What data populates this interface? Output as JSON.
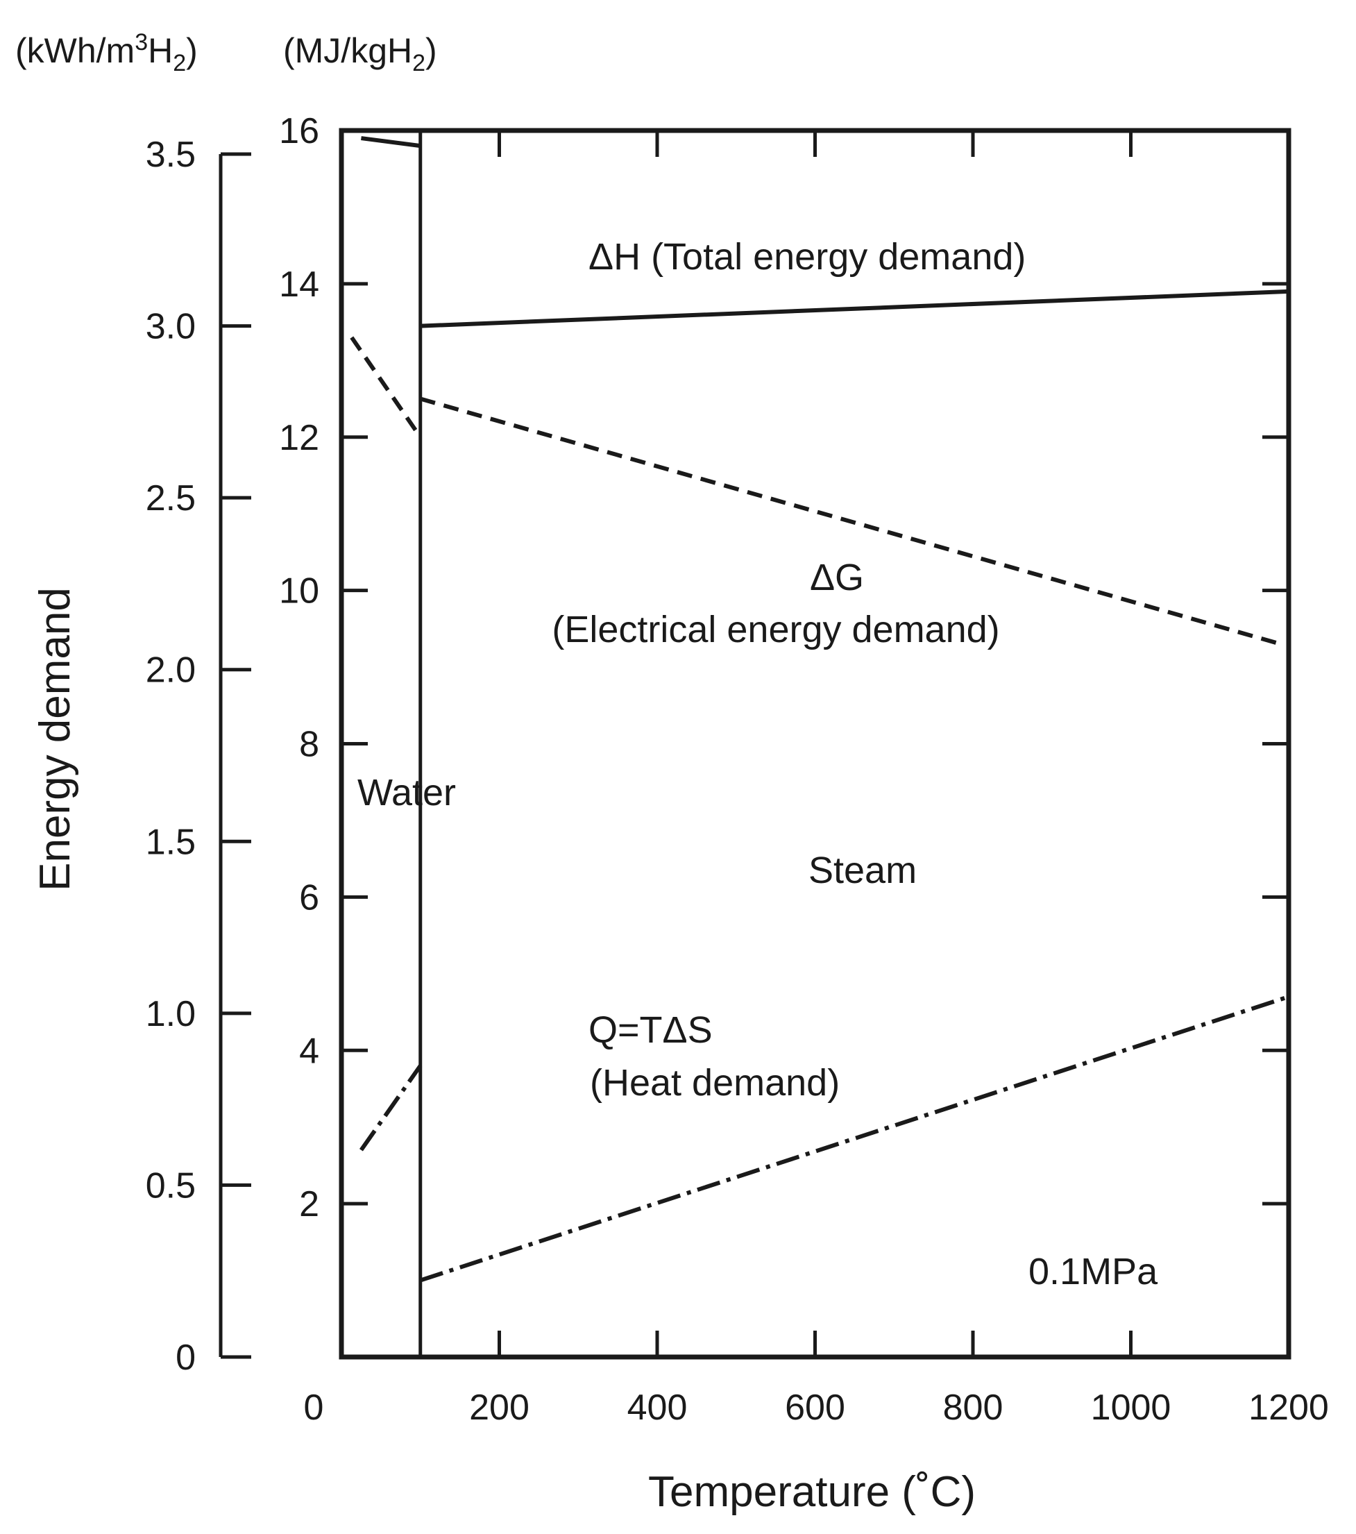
{
  "chart_data": {
    "type": "line",
    "xlabel": "Temperature (˚C)",
    "ylabel": "Energy demand",
    "y_unit_left": {
      "main": "(kWh/m",
      "sup": "3",
      "mid": "H",
      "sub": "2",
      "end": ")"
    },
    "y_unit_right": {
      "main": "(MJ/kgH",
      "sub": "2",
      "end": ")"
    },
    "xlim": [
      0,
      1200
    ],
    "ylim_mj_per_kg": [
      0,
      16
    ],
    "ylim_kwh_per_m3": [
      0,
      3.5
    ],
    "x_ticks": [
      "0",
      "200",
      "400",
      "600",
      "800",
      "1000",
      "1200"
    ],
    "y_ticks_mj_per_kg": [
      "2",
      "4",
      "6",
      "8",
      "10",
      "12",
      "14",
      "16"
    ],
    "y_ticks_kwh_per_m3": [
      "0",
      "0.5",
      "1.0",
      "1.5",
      "2.0",
      "2.5",
      "3.0",
      "3.5"
    ],
    "phase_boundary_x": 100,
    "series": [
      {
        "key": "dH",
        "style": "solid",
        "segments": [
          {
            "x": [
              25,
              100
            ],
            "y": [
              15.9,
              15.8
            ]
          },
          {
            "x": [
              100,
              1200
            ],
            "y": [
              13.45,
              13.9
            ]
          }
        ]
      },
      {
        "key": "dG",
        "style": "dashed",
        "segments": [
          {
            "x": [
              13,
              100
            ],
            "y": [
              13.3,
              12.0
            ]
          },
          {
            "x": [
              100,
              1190
            ],
            "y": [
              12.5,
              9.3
            ]
          }
        ]
      },
      {
        "key": "Q",
        "style": "dashdot",
        "segments": [
          {
            "x": [
              25,
              100
            ],
            "y": [
              2.7,
              3.8
            ]
          },
          {
            "x": [
              100,
              1200
            ],
            "y": [
              1.0,
              4.7
            ]
          }
        ]
      }
    ],
    "annotations": {
      "dH": "ΔH (Total energy demand)",
      "dG_symbol": "ΔG",
      "dG_desc": "(Electrical energy demand)",
      "q_formula": "Q=TΔS",
      "q_desc": "(Heat demand)",
      "water": "Water",
      "steam": "Steam",
      "pressure": "0.1MPa"
    }
  }
}
